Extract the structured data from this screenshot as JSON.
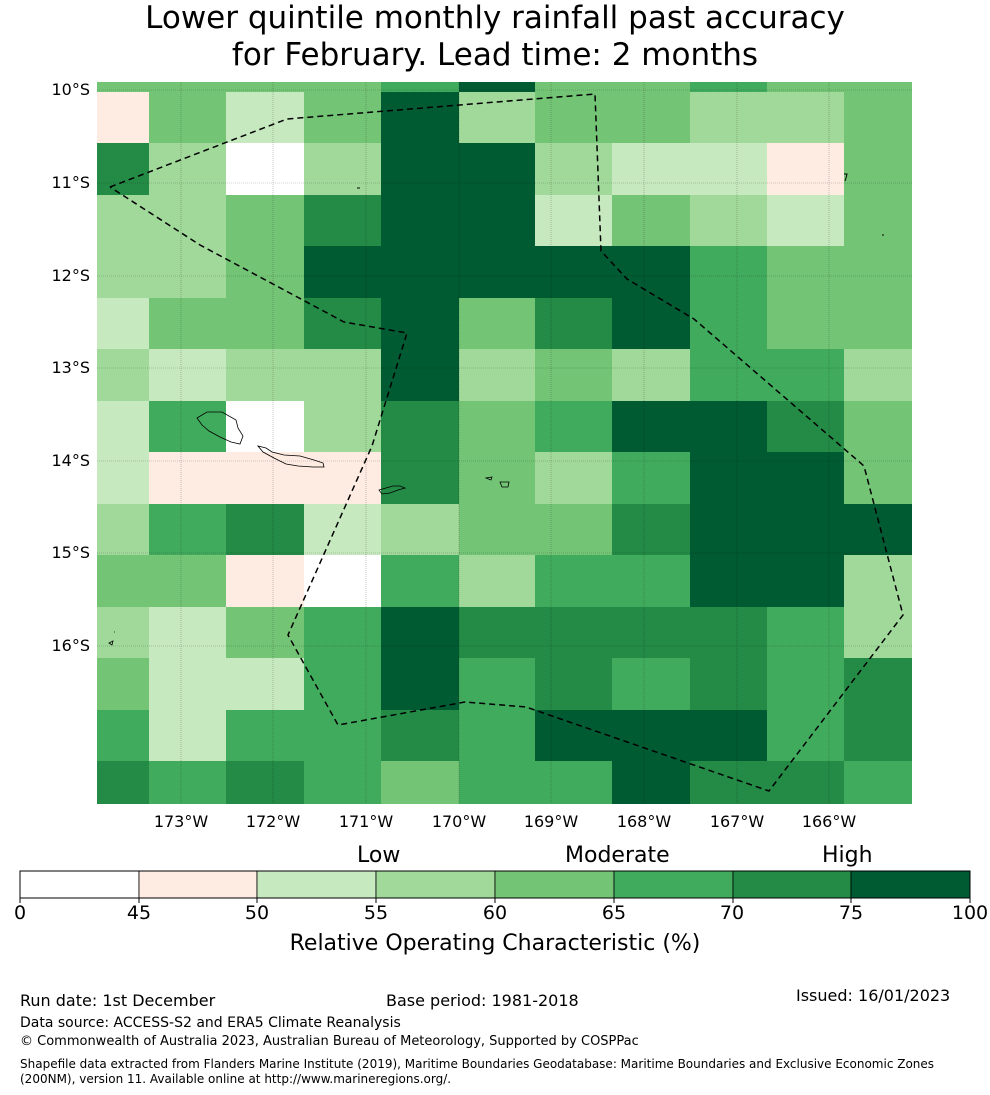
{
  "title": {
    "line1": "Lower quintile monthly rainfall past accuracy",
    "line2": "for February. Lead time: 2 months"
  },
  "map": {
    "lat_labels": [
      "10°S",
      "11°S",
      "12°S",
      "13°S",
      "14°S",
      "15°S",
      "16°S"
    ],
    "lon_labels": [
      "173°W",
      "172°W",
      "171°W",
      "170°W",
      "169°W",
      "168°W",
      "167°W",
      "166°W"
    ],
    "grid_levels": [
      [
        3,
        3,
        3,
        3,
        4,
        7,
        3,
        3,
        4,
        3,
        3,
        4
      ],
      [
        1,
        1,
        4,
        4,
        2,
        4,
        7,
        3,
        4,
        4,
        3,
        3,
        4
      ],
      [
        6,
        3,
        0,
        0,
        3,
        3,
        7,
        7,
        3,
        2,
        2,
        2,
        1,
        1,
        4
      ],
      [
        3,
        3,
        4,
        4,
        6,
        6,
        7,
        7,
        2,
        4,
        3,
        3,
        2,
        2,
        4
      ],
      [
        3,
        3,
        4,
        4,
        7,
        7,
        7,
        7,
        7,
        7,
        7,
        7,
        5,
        5,
        4,
        4
      ],
      [
        2,
        4,
        4,
        4,
        6,
        6,
        7,
        7,
        4,
        6,
        7,
        5,
        4,
        4,
        4,
        4
      ],
      [
        3,
        2,
        2,
        3,
        3,
        3,
        7,
        7,
        3,
        3,
        4,
        4,
        3,
        3,
        5,
        5,
        5,
        5,
        5,
        5,
        3
      ],
      [
        2,
        5,
        0,
        3,
        6,
        6,
        4,
        5,
        7,
        7,
        7,
        7,
        6,
        6,
        4,
        4
      ],
      [
        2,
        1,
        1,
        1,
        1,
        2,
        6,
        6,
        4,
        4,
        3,
        5,
        7,
        7,
        7,
        7,
        4,
        4
      ],
      [
        3,
        5,
        6,
        6,
        2,
        3,
        4,
        4,
        4,
        4,
        6,
        6,
        7,
        7,
        7,
        7,
        7,
        7
      ],
      [
        4,
        4,
        4,
        1,
        0,
        0,
        5,
        5,
        3,
        3,
        5,
        5,
        5,
        5,
        7,
        7,
        7,
        7,
        3,
        3
      ],
      [
        3,
        2,
        2,
        4,
        5,
        5,
        7,
        7,
        6,
        6,
        6,
        6,
        6,
        6,
        6,
        6,
        5,
        5,
        3,
        3
      ],
      [
        4,
        2,
        2,
        2,
        5,
        5,
        7,
        7,
        5,
        5,
        6,
        6,
        5,
        5,
        6,
        6,
        5,
        5,
        6,
        6
      ],
      [
        5,
        2,
        2,
        5,
        5,
        5,
        6,
        6,
        5,
        5,
        7,
        7,
        7,
        7,
        7,
        7,
        5,
        5,
        6,
        6
      ],
      [
        6,
        5,
        5,
        6,
        5,
        5,
        4,
        4,
        5,
        5,
        5,
        5,
        7,
        7,
        6,
        6,
        6,
        6,
        5,
        5
      ]
    ]
  },
  "colorbar": {
    "categories": [
      "Low",
      "Moderate",
      "High"
    ],
    "ticks": [
      "0",
      "45",
      "50",
      "55",
      "60",
      "65",
      "70",
      "75",
      "100"
    ],
    "colors": [
      "#ffffff",
      "#feebe2",
      "#c7e9c0",
      "#a1d99b",
      "#74c476",
      "#41ab5d",
      "#238b45",
      "#005a32"
    ],
    "label": "Relative Operating Characteristic (%)"
  },
  "footer": {
    "run_date": "Run date: 1st December",
    "base_period": "Base period: 1981-2018",
    "issued": "Issued: 16/01/2023",
    "data_source": "Data source: ACCESS-S2 and ERA5 Climate Reanalysis",
    "copyright": "© Commonwealth of Australia 2023, Australian Bureau of Meteorology, Supported by COSPPac",
    "shapefile": "Shapefile data extracted from Flanders Marine Institute (2019), Maritime Boundaries Geodatabase: Maritime Boundaries and Exclusive Economic Zones (200NM), version 11. Available online at http://www.marineregions.org/."
  }
}
